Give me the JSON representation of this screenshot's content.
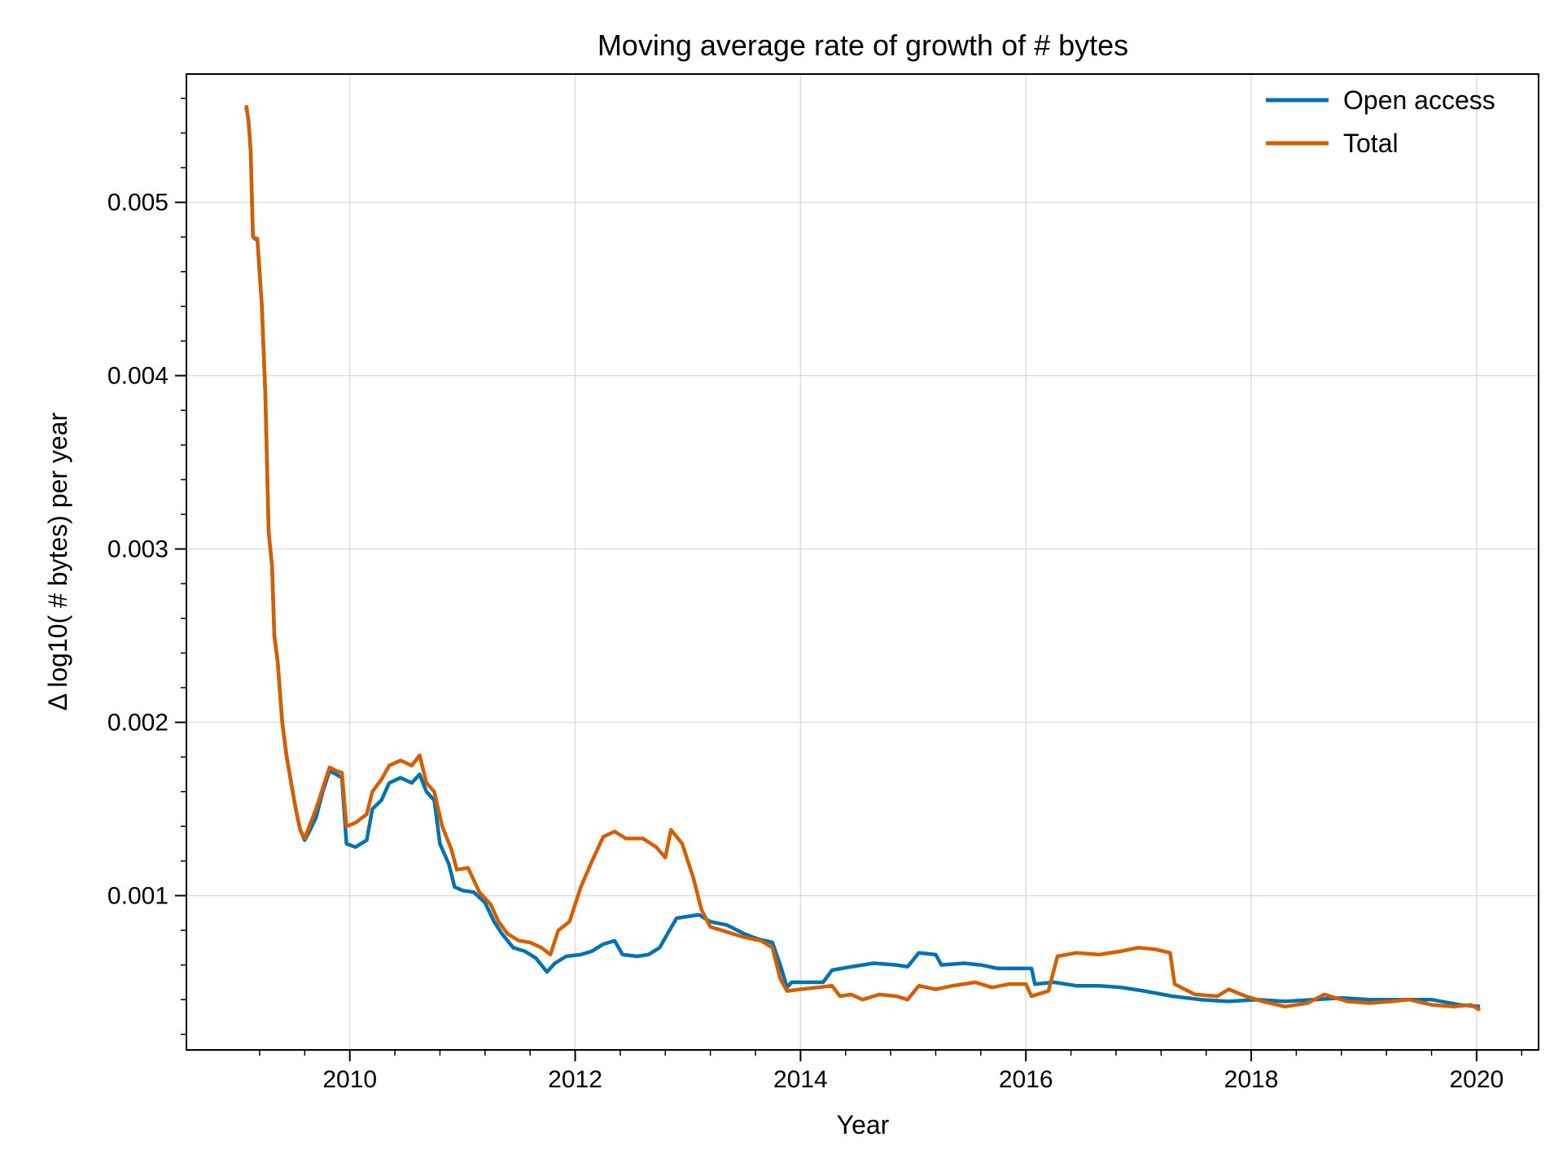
{
  "chart_data": {
    "type": "line",
    "title": "Moving average rate of growth of # bytes",
    "xlabel": "Year",
    "ylabel": "Δ log10( # bytes) per year",
    "xlim": [
      2008.55,
      2020.55
    ],
    "ylim": [
      0.00011,
      0.00574
    ],
    "xticks": [
      2010,
      2012,
      2014,
      2016,
      2018,
      2020
    ],
    "xtick_labels": [
      "2010",
      "2012",
      "2014",
      "2016",
      "2018",
      "2020"
    ],
    "yticks": [
      0.001,
      0.002,
      0.003,
      0.004,
      0.005
    ],
    "ytick_labels": [
      "0.001",
      "0.002",
      "0.003",
      "0.004",
      "0.005"
    ],
    "grid": true,
    "legend_position": "top-right",
    "series": [
      {
        "name": "Open access",
        "color": "#0072b2",
        "points": [
          [
            2009.08,
            0.00555
          ],
          [
            2009.1,
            0.00548
          ],
          [
            2009.12,
            0.0053
          ],
          [
            2009.14,
            0.0048
          ],
          [
            2009.18,
            0.00478
          ],
          [
            2009.22,
            0.0044
          ],
          [
            2009.25,
            0.0039
          ],
          [
            2009.28,
            0.0031
          ],
          [
            2009.31,
            0.0029
          ],
          [
            2009.33,
            0.0025
          ],
          [
            2009.36,
            0.00235
          ],
          [
            2009.4,
            0.002
          ],
          [
            2009.44,
            0.0018
          ],
          [
            2009.48,
            0.00165
          ],
          [
            2009.52,
            0.0015
          ],
          [
            2009.56,
            0.00138
          ],
          [
            2009.6,
            0.00132
          ],
          [
            2009.64,
            0.00137
          ],
          [
            2009.7,
            0.00145
          ],
          [
            2009.76,
            0.0016
          ],
          [
            2009.82,
            0.00172
          ],
          [
            2009.88,
            0.0017
          ],
          [
            2009.93,
            0.00168
          ],
          [
            2009.97,
            0.0013
          ],
          [
            2010.05,
            0.00128
          ],
          [
            2010.15,
            0.00132
          ],
          [
            2010.2,
            0.0015
          ],
          [
            2010.28,
            0.00155
          ],
          [
            2010.35,
            0.00165
          ],
          [
            2010.45,
            0.00168
          ],
          [
            2010.55,
            0.00165
          ],
          [
            2010.62,
            0.0017
          ],
          [
            2010.68,
            0.0016
          ],
          [
            2010.75,
            0.00155
          ],
          [
            2010.8,
            0.0013
          ],
          [
            2010.88,
            0.00118
          ],
          [
            2010.93,
            0.00105
          ],
          [
            2011.0,
            0.00103
          ],
          [
            2011.1,
            0.00102
          ],
          [
            2011.2,
            0.00096
          ],
          [
            2011.28,
            0.00085
          ],
          [
            2011.35,
            0.00078
          ],
          [
            2011.45,
            0.0007
          ],
          [
            2011.55,
            0.00068
          ],
          [
            2011.65,
            0.00064
          ],
          [
            2011.75,
            0.00056
          ],
          [
            2011.82,
            0.00061
          ],
          [
            2011.92,
            0.00065
          ],
          [
            2012.05,
            0.00066
          ],
          [
            2012.15,
            0.00068
          ],
          [
            2012.25,
            0.00072
          ],
          [
            2012.35,
            0.00074
          ],
          [
            2012.42,
            0.00066
          ],
          [
            2012.55,
            0.00065
          ],
          [
            2012.65,
            0.00066
          ],
          [
            2012.75,
            0.0007
          ],
          [
            2012.82,
            0.00078
          ],
          [
            2012.9,
            0.00087
          ],
          [
            2013.0,
            0.00088
          ],
          [
            2013.1,
            0.00089
          ],
          [
            2013.2,
            0.00085
          ],
          [
            2013.35,
            0.00083
          ],
          [
            2013.5,
            0.00078
          ],
          [
            2013.62,
            0.00075
          ],
          [
            2013.75,
            0.00073
          ],
          [
            2013.82,
            0.0006
          ],
          [
            2013.88,
            0.00047
          ],
          [
            2013.92,
            0.0005
          ],
          [
            2014.05,
            0.0005
          ],
          [
            2014.2,
            0.0005
          ],
          [
            2014.28,
            0.00057
          ],
          [
            2014.45,
            0.00059
          ],
          [
            2014.65,
            0.00061
          ],
          [
            2014.85,
            0.0006
          ],
          [
            2014.95,
            0.00059
          ],
          [
            2015.05,
            0.00067
          ],
          [
            2015.2,
            0.00066
          ],
          [
            2015.25,
            0.0006
          ],
          [
            2015.45,
            0.00061
          ],
          [
            2015.6,
            0.0006
          ],
          [
            2015.75,
            0.00058
          ],
          [
            2015.9,
            0.00058
          ],
          [
            2016.05,
            0.00058
          ],
          [
            2016.08,
            0.00049
          ],
          [
            2016.25,
            0.0005
          ],
          [
            2016.45,
            0.00048
          ],
          [
            2016.65,
            0.00048
          ],
          [
            2016.85,
            0.00047
          ],
          [
            2017.05,
            0.00045
          ],
          [
            2017.3,
            0.00042
          ],
          [
            2017.55,
            0.0004
          ],
          [
            2017.8,
            0.00039
          ],
          [
            2018.05,
            0.0004
          ],
          [
            2018.3,
            0.00039
          ],
          [
            2018.55,
            0.0004
          ],
          [
            2018.8,
            0.00041
          ],
          [
            2019.05,
            0.0004
          ],
          [
            2019.35,
            0.0004
          ],
          [
            2019.6,
            0.0004
          ],
          [
            2019.85,
            0.00037
          ],
          [
            2020.03,
            0.00036
          ]
        ]
      },
      {
        "name": "Total",
        "color": "#d55e00",
        "points": [
          [
            2009.08,
            0.00556
          ],
          [
            2009.1,
            0.00548
          ],
          [
            2009.12,
            0.0053
          ],
          [
            2009.14,
            0.0048
          ],
          [
            2009.18,
            0.00479
          ],
          [
            2009.22,
            0.0044
          ],
          [
            2009.25,
            0.0039
          ],
          [
            2009.28,
            0.0031
          ],
          [
            2009.31,
            0.0029
          ],
          [
            2009.33,
            0.0025
          ],
          [
            2009.36,
            0.00235
          ],
          [
            2009.4,
            0.002
          ],
          [
            2009.44,
            0.0018
          ],
          [
            2009.48,
            0.00165
          ],
          [
            2009.52,
            0.0015
          ],
          [
            2009.56,
            0.00138
          ],
          [
            2009.6,
            0.00133
          ],
          [
            2009.64,
            0.0014
          ],
          [
            2009.7,
            0.0015
          ],
          [
            2009.76,
            0.00162
          ],
          [
            2009.82,
            0.00174
          ],
          [
            2009.88,
            0.00172
          ],
          [
            2009.93,
            0.00171
          ],
          [
            2009.97,
            0.0014
          ],
          [
            2010.05,
            0.00142
          ],
          [
            2010.15,
            0.00147
          ],
          [
            2010.2,
            0.0016
          ],
          [
            2010.28,
            0.00167
          ],
          [
            2010.35,
            0.00175
          ],
          [
            2010.45,
            0.00178
          ],
          [
            2010.55,
            0.00175
          ],
          [
            2010.62,
            0.00181
          ],
          [
            2010.68,
            0.00165
          ],
          [
            2010.75,
            0.0016
          ],
          [
            2010.82,
            0.0014
          ],
          [
            2010.9,
            0.00127
          ],
          [
            2010.95,
            0.00115
          ],
          [
            2011.05,
            0.00116
          ],
          [
            2011.15,
            0.00102
          ],
          [
            2011.25,
            0.00095
          ],
          [
            2011.32,
            0.00085
          ],
          [
            2011.4,
            0.00078
          ],
          [
            2011.5,
            0.00074
          ],
          [
            2011.6,
            0.00073
          ],
          [
            2011.7,
            0.0007
          ],
          [
            2011.78,
            0.00066
          ],
          [
            2011.85,
            0.0008
          ],
          [
            2011.95,
            0.00085
          ],
          [
            2012.05,
            0.00105
          ],
          [
            2012.15,
            0.0012
          ],
          [
            2012.25,
            0.00134
          ],
          [
            2012.35,
            0.00137
          ],
          [
            2012.45,
            0.00133
          ],
          [
            2012.6,
            0.00133
          ],
          [
            2012.72,
            0.00128
          ],
          [
            2012.8,
            0.00122
          ],
          [
            2012.85,
            0.00138
          ],
          [
            2012.95,
            0.0013
          ],
          [
            2013.05,
            0.0011
          ],
          [
            2013.12,
            0.00092
          ],
          [
            2013.2,
            0.00082
          ],
          [
            2013.35,
            0.00079
          ],
          [
            2013.5,
            0.00076
          ],
          [
            2013.65,
            0.00074
          ],
          [
            2013.75,
            0.0007
          ],
          [
            2013.82,
            0.00052
          ],
          [
            2013.88,
            0.00045
          ],
          [
            2014.0,
            0.00046
          ],
          [
            2014.15,
            0.00047
          ],
          [
            2014.28,
            0.00048
          ],
          [
            2014.35,
            0.00042
          ],
          [
            2014.45,
            0.00043
          ],
          [
            2014.55,
            0.0004
          ],
          [
            2014.7,
            0.00043
          ],
          [
            2014.85,
            0.00042
          ],
          [
            2014.95,
            0.0004
          ],
          [
            2015.05,
            0.00048
          ],
          [
            2015.2,
            0.00046
          ],
          [
            2015.35,
            0.00048
          ],
          [
            2015.55,
            0.0005
          ],
          [
            2015.7,
            0.00047
          ],
          [
            2015.85,
            0.00049
          ],
          [
            2016.0,
            0.00049
          ],
          [
            2016.05,
            0.00042
          ],
          [
            2016.2,
            0.00045
          ],
          [
            2016.28,
            0.00065
          ],
          [
            2016.45,
            0.00067
          ],
          [
            2016.65,
            0.00066
          ],
          [
            2016.85,
            0.00068
          ],
          [
            2017.0,
            0.0007
          ],
          [
            2017.15,
            0.00069
          ],
          [
            2017.28,
            0.00067
          ],
          [
            2017.32,
            0.00049
          ],
          [
            2017.5,
            0.00043
          ],
          [
            2017.7,
            0.00042
          ],
          [
            2017.8,
            0.00046
          ],
          [
            2017.95,
            0.00042
          ],
          [
            2018.1,
            0.00039
          ],
          [
            2018.3,
            0.00036
          ],
          [
            2018.5,
            0.00038
          ],
          [
            2018.65,
            0.00043
          ],
          [
            2018.85,
            0.00039
          ],
          [
            2019.05,
            0.00038
          ],
          [
            2019.25,
            0.00039
          ],
          [
            2019.4,
            0.0004
          ],
          [
            2019.6,
            0.00037
          ],
          [
            2019.8,
            0.00036
          ],
          [
            2019.95,
            0.00037
          ],
          [
            2020.03,
            0.00034
          ]
        ]
      }
    ]
  }
}
